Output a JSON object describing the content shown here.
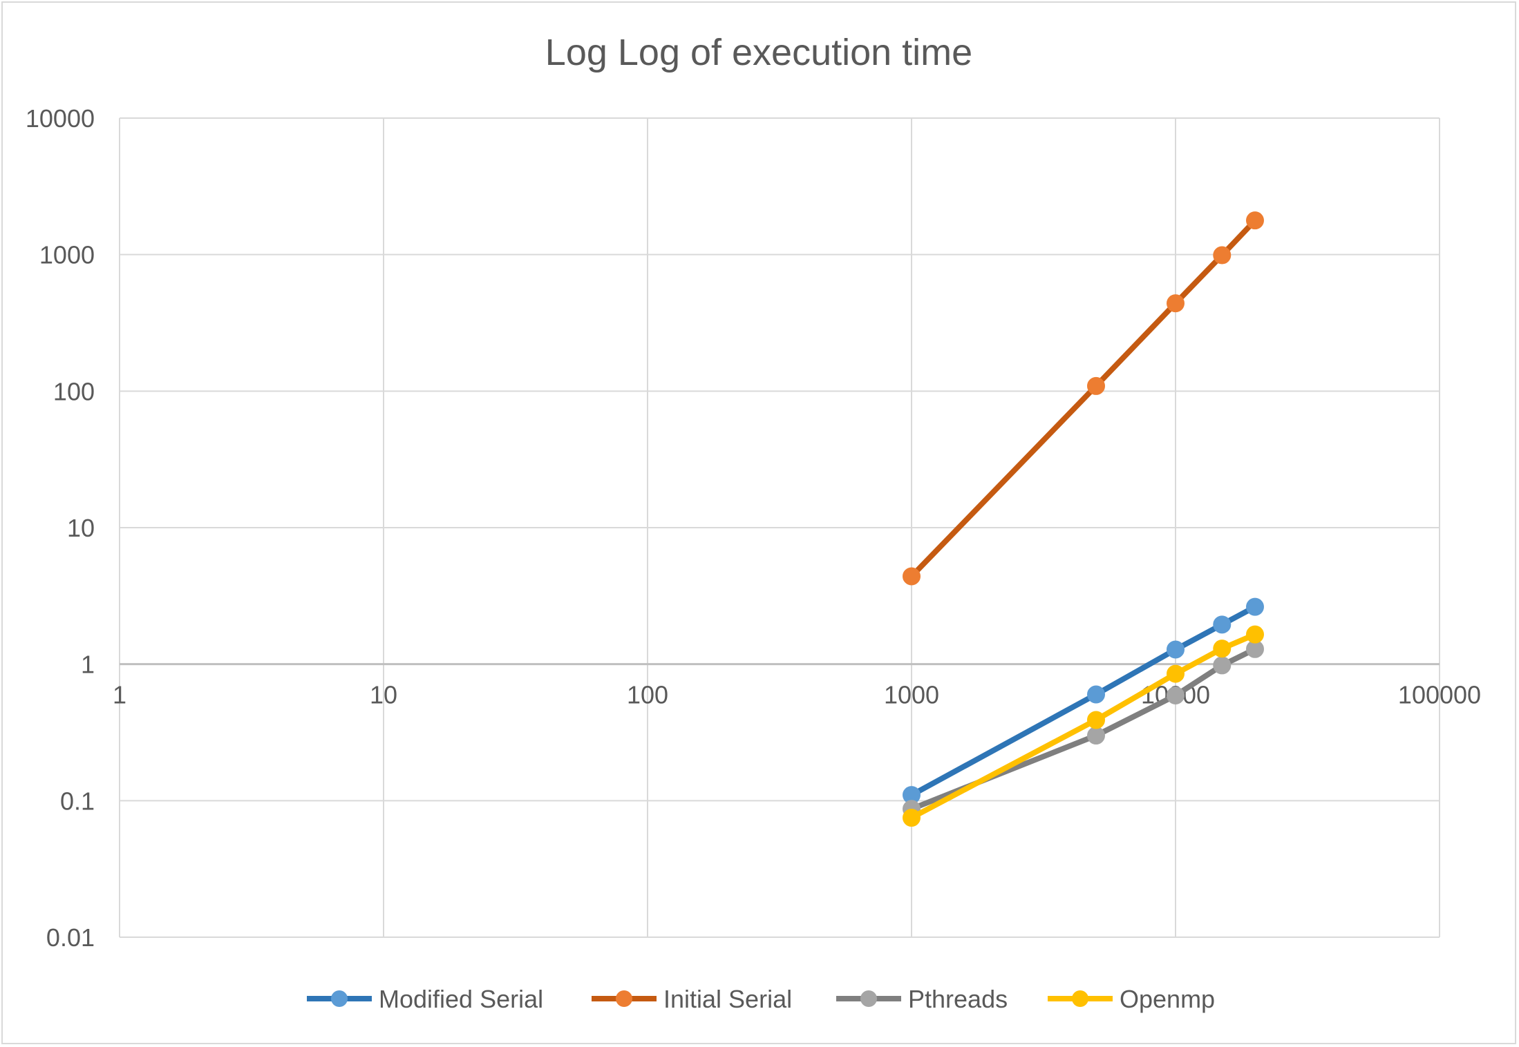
{
  "chart_data": {
    "type": "line",
    "title": "Log Log of execution time",
    "xlabel": "",
    "ylabel": "",
    "x_scale": "log",
    "y_scale": "log",
    "xlim": [
      1,
      100000
    ],
    "ylim": [
      0.01,
      10000
    ],
    "x_ticks": [
      "1",
      "10",
      "100",
      "1000",
      "10000",
      "100000"
    ],
    "y_ticks": [
      "10000",
      "1000",
      "100",
      "10",
      "1",
      "0.1",
      "0.01"
    ],
    "grid": true,
    "legend_position": "bottom",
    "series": [
      {
        "name": "Modified Serial",
        "color": "#2E75B6",
        "marker_color": "#5B9BD5",
        "x": [
          1000,
          5000,
          10000,
          15000,
          20000
        ],
        "y": [
          0.11,
          0.6,
          1.28,
          1.95,
          2.63
        ]
      },
      {
        "name": "Initial Serial",
        "color": "#C55A11",
        "marker_color": "#ED7D31",
        "x": [
          1000,
          5000,
          10000,
          15000,
          20000
        ],
        "y": [
          4.4,
          109,
          440,
          990,
          1780
        ]
      },
      {
        "name": "Pthreads",
        "color": "#7F7F7F",
        "marker_color": "#A5A5A5",
        "x": [
          1000,
          5000,
          10000,
          15000,
          20000
        ],
        "y": [
          0.087,
          0.3,
          0.59,
          0.98,
          1.29
        ]
      },
      {
        "name": "Openmp",
        "color": "#FFC000",
        "marker_color": "#FFC000",
        "x": [
          1000,
          5000,
          10000,
          15000,
          20000
        ],
        "y": [
          0.075,
          0.39,
          0.85,
          1.3,
          1.65
        ]
      }
    ]
  }
}
